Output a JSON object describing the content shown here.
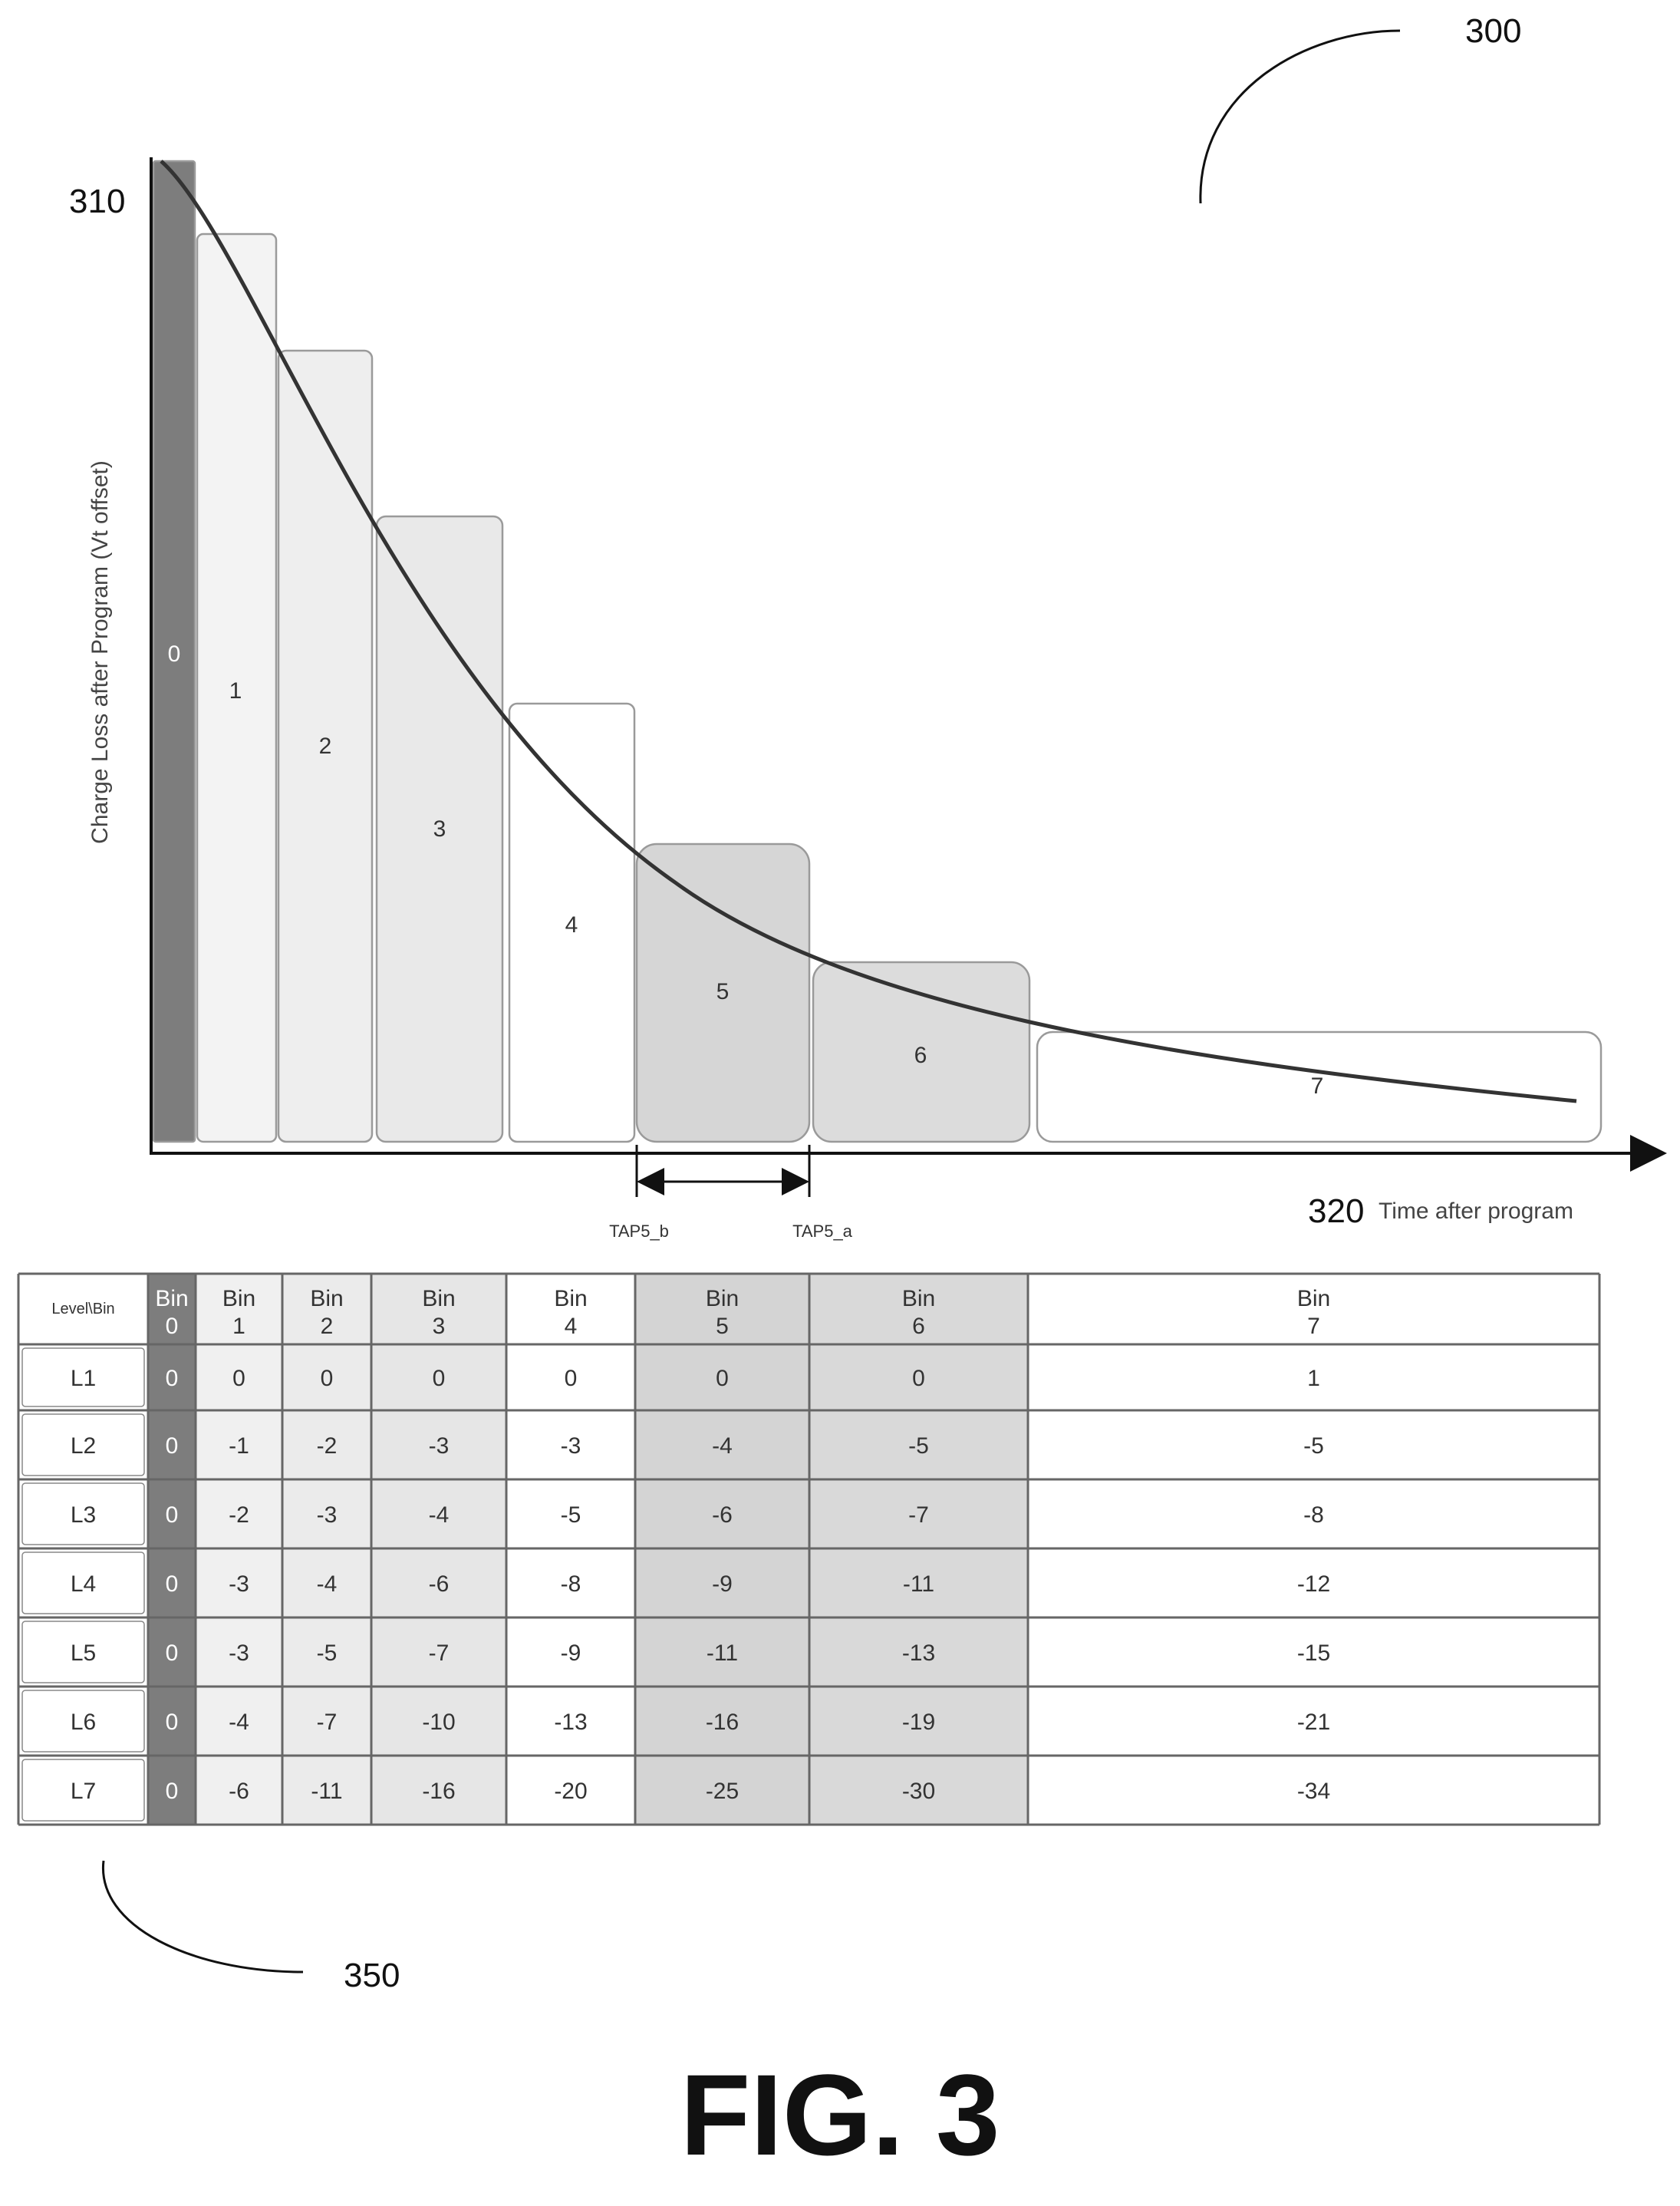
{
  "figure": {
    "ref_figure": "300",
    "ref_chart": "310",
    "ref_xaxis": "320",
    "ref_table": "350",
    "caption": "FIG. 3"
  },
  "chart_data": {
    "type": "bar",
    "ylabel": "Charge Loss after Program (Vt offset)",
    "xlabel": "Time after program",
    "bins": [
      {
        "label": "0",
        "fill": "#7d7d7d"
      },
      {
        "label": "1",
        "fill": "#f3f3f3"
      },
      {
        "label": "2",
        "fill": "#eeeeee"
      },
      {
        "label": "3",
        "fill": "#e9e9e9"
      },
      {
        "label": "4",
        "fill": "#ffffff"
      },
      {
        "label": "5",
        "fill": "#d6d6d6"
      },
      {
        "label": "6",
        "fill": "#dcdcdc"
      },
      {
        "label": "7",
        "fill": "#ffffff"
      }
    ],
    "markers": {
      "left": "TAP5_b",
      "right": "TAP5_a"
    }
  },
  "table": {
    "corner": "Level\\Bin",
    "header_word": "Bin",
    "bins": [
      "0",
      "1",
      "2",
      "3",
      "4",
      "5",
      "6",
      "7"
    ],
    "col_fills": [
      "#7d7d7d",
      "#f0f0f0",
      "#ebebeb",
      "#e6e6e6",
      "#ffffff",
      "#d4d4d4",
      "#d9d9d9",
      "#ffffff"
    ],
    "rows": [
      {
        "level": "L1",
        "values": [
          "0",
          "0",
          "0",
          "0",
          "0",
          "0",
          "0",
          "1"
        ]
      },
      {
        "level": "L2",
        "values": [
          "0",
          "-1",
          "-2",
          "-3",
          "-3",
          "-4",
          "-5",
          "-5"
        ]
      },
      {
        "level": "L3",
        "values": [
          "0",
          "-2",
          "-3",
          "-4",
          "-5",
          "-6",
          "-7",
          "-8"
        ]
      },
      {
        "level": "L4",
        "values": [
          "0",
          "-3",
          "-4",
          "-6",
          "-8",
          "-9",
          "-11",
          "-12"
        ]
      },
      {
        "level": "L5",
        "values": [
          "0",
          "-3",
          "-5",
          "-7",
          "-9",
          "-11",
          "-13",
          "-15"
        ]
      },
      {
        "level": "L6",
        "values": [
          "0",
          "-4",
          "-7",
          "-10",
          "-13",
          "-16",
          "-19",
          "-21"
        ]
      },
      {
        "level": "L7",
        "values": [
          "0",
          "-6",
          "-11",
          "-16",
          "-20",
          "-25",
          "-30",
          "-34"
        ]
      }
    ]
  }
}
